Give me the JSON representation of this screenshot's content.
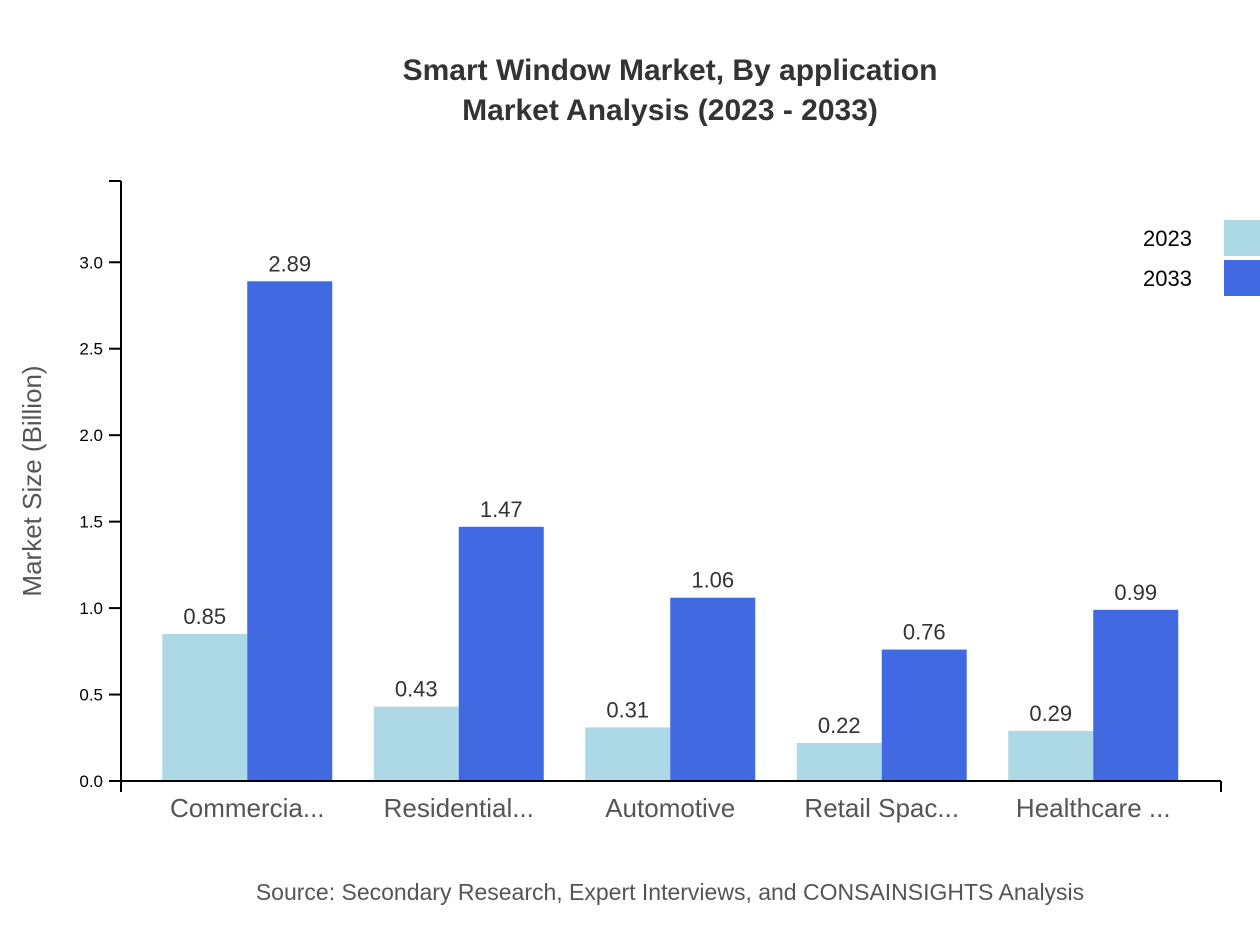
{
  "chart_data": {
    "type": "bar",
    "title": "Smart Window Market, By application",
    "subtitle": "Market Analysis (2023 - 2033)",
    "xlabel": "",
    "ylabel": "Market Size (Billion)",
    "categories": [
      "Commercia...",
      "Residential...",
      "Automotive",
      "Retail Spac...",
      "Healthcare ..."
    ],
    "series": [
      {
        "name": "2023",
        "color": "#ADD8E6",
        "values": [
          0.85,
          0.43,
          0.31,
          0.22,
          0.29
        ]
      },
      {
        "name": "2033",
        "color": "#4169E1",
        "values": [
          2.89,
          1.47,
          1.06,
          0.76,
          0.99
        ]
      }
    ],
    "ylim": [
      0,
      3.47
    ],
    "yticks": [
      "0.0",
      "0.5",
      "1.0",
      "1.5",
      "2.0",
      "2.5",
      "3.0"
    ],
    "grid": false,
    "legend": "top-right",
    "source": "Source: Secondary Research, Expert Interviews, and CONSAINSIGHTS Analysis"
  }
}
